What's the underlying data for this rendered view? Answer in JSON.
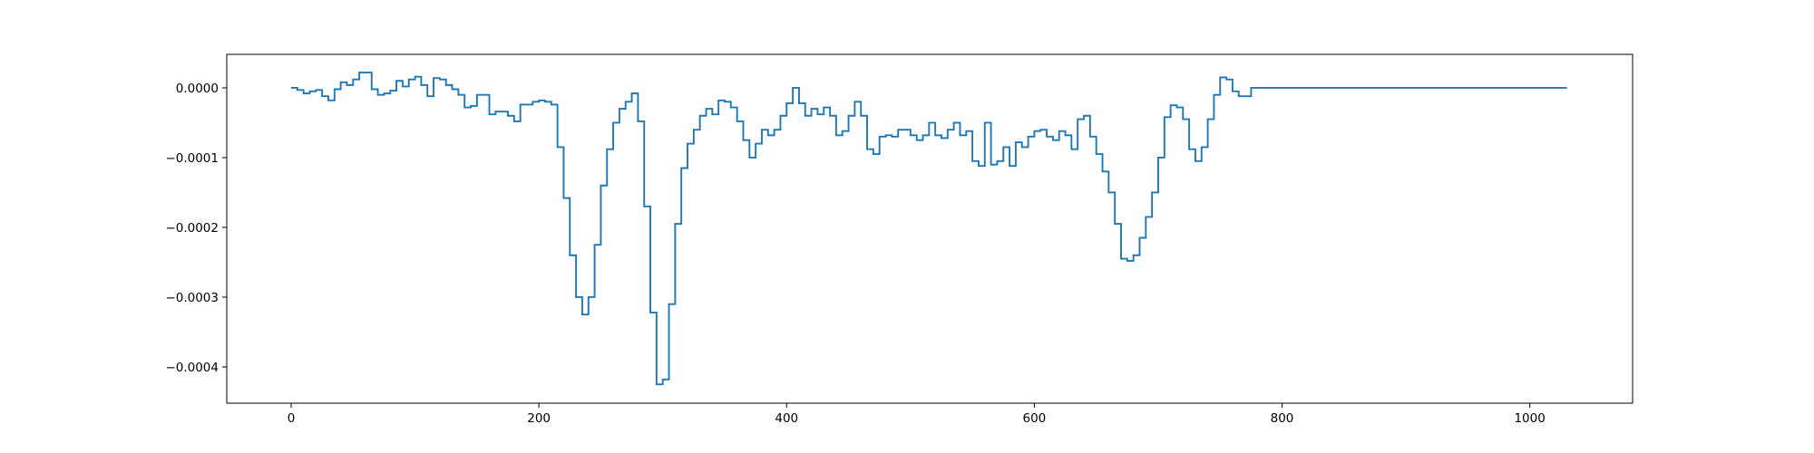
{
  "chart_data": {
    "type": "line",
    "title": "",
    "xlabel": "",
    "ylabel": "",
    "xlim": [
      -52,
      1083
    ],
    "ylim": [
      -0.000452,
      4.8e-05
    ],
    "xticks": [
      0,
      200,
      400,
      600,
      800,
      1000
    ],
    "xtick_labels": [
      "0",
      "200",
      "400",
      "600",
      "800",
      "1000"
    ],
    "yticks": [
      0.0,
      -0.0001,
      -0.0002,
      -0.0003,
      -0.0004
    ],
    "ytick_labels": [
      "0.0000",
      "−0.0001",
      "−0.0002",
      "−0.0003",
      "−0.0004"
    ],
    "grid": false,
    "legend": "none",
    "color": "#1f77b4",
    "series": [
      {
        "step": true,
        "points": [
          [
            0,
            0.0
          ],
          [
            5,
            -3e-06
          ],
          [
            10,
            -8e-06
          ],
          [
            15,
            -5e-06
          ],
          [
            20,
            -3e-06
          ],
          [
            25,
            -1.2e-05
          ],
          [
            30,
            -1.8e-05
          ],
          [
            35,
            -2e-06
          ],
          [
            40,
            8e-06
          ],
          [
            45,
            4e-06
          ],
          [
            50,
            1.2e-05
          ],
          [
            55,
            2.2e-05
          ],
          [
            60,
            2.2e-05
          ],
          [
            65,
            -2e-06
          ],
          [
            70,
            -1e-05
          ],
          [
            75,
            -8e-06
          ],
          [
            80,
            -4e-06
          ],
          [
            85,
            1e-05
          ],
          [
            90,
            2e-06
          ],
          [
            95,
            1.2e-05
          ],
          [
            100,
            1.6e-05
          ],
          [
            105,
            4e-06
          ],
          [
            110,
            -1.2e-05
          ],
          [
            115,
            1.4e-05
          ],
          [
            120,
            1.2e-05
          ],
          [
            125,
            4e-06
          ],
          [
            130,
            -2e-06
          ],
          [
            135,
            -1e-05
          ],
          [
            140,
            -2.8e-05
          ],
          [
            145,
            -2.6e-05
          ],
          [
            150,
            -1e-05
          ],
          [
            155,
            -1e-05
          ],
          [
            160,
            -3.8e-05
          ],
          [
            165,
            -3.4e-05
          ],
          [
            170,
            -3.4e-05
          ],
          [
            175,
            -4e-05
          ],
          [
            180,
            -4.8e-05
          ],
          [
            185,
            -2.4e-05
          ],
          [
            190,
            -2.4e-05
          ],
          [
            195,
            -2e-05
          ],
          [
            200,
            -1.8e-05
          ],
          [
            205,
            -2e-05
          ],
          [
            210,
            -2.4e-05
          ],
          [
            215,
            -8.5e-05
          ],
          [
            220,
            -0.000158
          ],
          [
            225,
            -0.00024
          ],
          [
            230,
            -0.0003
          ],
          [
            235,
            -0.000325
          ],
          [
            240,
            -0.0003
          ],
          [
            245,
            -0.000225
          ],
          [
            250,
            -0.00014
          ],
          [
            255,
            -8.8e-05
          ],
          [
            260,
            -5e-05
          ],
          [
            265,
            -3e-05
          ],
          [
            270,
            -2e-05
          ],
          [
            275,
            -8e-06
          ],
          [
            280,
            -4.8e-05
          ],
          [
            285,
            -0.00017
          ],
          [
            290,
            -0.000322
          ],
          [
            295,
            -0.000425
          ],
          [
            300,
            -0.000418
          ],
          [
            305,
            -0.00031
          ],
          [
            310,
            -0.000195
          ],
          [
            315,
            -0.000115
          ],
          [
            320,
            -8e-05
          ],
          [
            325,
            -6e-05
          ],
          [
            330,
            -4e-05
          ],
          [
            335,
            -3e-05
          ],
          [
            340,
            -3.8e-05
          ],
          [
            345,
            -1.8e-05
          ],
          [
            350,
            -2e-05
          ],
          [
            355,
            -2.8e-05
          ],
          [
            360,
            -4.8e-05
          ],
          [
            365,
            -7.5e-05
          ],
          [
            370,
            -0.0001
          ],
          [
            375,
            -8e-05
          ],
          [
            380,
            -6e-05
          ],
          [
            385,
            -6.8e-05
          ],
          [
            390,
            -6e-05
          ],
          [
            395,
            -4e-05
          ],
          [
            400,
            -2.2e-05
          ],
          [
            405,
            0.0
          ],
          [
            410,
            -2.2e-05
          ],
          [
            415,
            -4e-05
          ],
          [
            420,
            -3e-05
          ],
          [
            425,
            -3.8e-05
          ],
          [
            430,
            -2.8e-05
          ],
          [
            435,
            -4e-05
          ],
          [
            440,
            -6.8e-05
          ],
          [
            445,
            -6.2e-05
          ],
          [
            450,
            -4e-05
          ],
          [
            455,
            -2e-05
          ],
          [
            460,
            -4e-05
          ],
          [
            465,
            -8.8e-05
          ],
          [
            470,
            -9.5e-05
          ],
          [
            475,
            -7e-05
          ],
          [
            480,
            -6.8e-05
          ],
          [
            485,
            -7e-05
          ],
          [
            490,
            -6e-05
          ],
          [
            495,
            -6e-05
          ],
          [
            500,
            -6.8e-05
          ],
          [
            505,
            -7.5e-05
          ],
          [
            510,
            -6.8e-05
          ],
          [
            515,
            -5e-05
          ],
          [
            520,
            -6.8e-05
          ],
          [
            525,
            -7.2e-05
          ],
          [
            530,
            -6e-05
          ],
          [
            535,
            -5e-05
          ],
          [
            540,
            -6.8e-05
          ],
          [
            545,
            -6.2e-05
          ],
          [
            550,
            -0.000105
          ],
          [
            555,
            -0.000112
          ],
          [
            560,
            -5e-05
          ],
          [
            565,
            -0.00011
          ],
          [
            570,
            -0.000105
          ],
          [
            575,
            -8.5e-05
          ],
          [
            580,
            -0.000112
          ],
          [
            585,
            -7.8e-05
          ],
          [
            590,
            -8.5e-05
          ],
          [
            595,
            -7e-05
          ],
          [
            600,
            -6.2e-05
          ],
          [
            605,
            -6e-05
          ],
          [
            610,
            -7e-05
          ],
          [
            615,
            -7.5e-05
          ],
          [
            620,
            -6.2e-05
          ],
          [
            625,
            -6.8e-05
          ],
          [
            630,
            -8.8e-05
          ],
          [
            635,
            -4.5e-05
          ],
          [
            640,
            -4e-05
          ],
          [
            645,
            -7e-05
          ],
          [
            650,
            -9.5e-05
          ],
          [
            655,
            -0.00012
          ],
          [
            660,
            -0.00015
          ],
          [
            665,
            -0.000195
          ],
          [
            670,
            -0.000245
          ],
          [
            675,
            -0.000248
          ],
          [
            680,
            -0.00024
          ],
          [
            685,
            -0.000215
          ],
          [
            690,
            -0.000185
          ],
          [
            695,
            -0.00015
          ],
          [
            700,
            -0.0001
          ],
          [
            705,
            -4.2e-05
          ],
          [
            710,
            -2.5e-05
          ],
          [
            715,
            -2.8e-05
          ],
          [
            720,
            -4.5e-05
          ],
          [
            725,
            -8.8e-05
          ],
          [
            730,
            -0.000105
          ],
          [
            735,
            -8.5e-05
          ],
          [
            740,
            -4.5e-05
          ],
          [
            745,
            -1e-05
          ],
          [
            750,
            1.5e-05
          ],
          [
            755,
            1.2e-05
          ],
          [
            760,
            -5e-06
          ],
          [
            765,
            -1.2e-05
          ],
          [
            770,
            -1.2e-05
          ],
          [
            775,
            0.0
          ],
          [
            1030,
            0.0
          ]
        ]
      }
    ]
  }
}
